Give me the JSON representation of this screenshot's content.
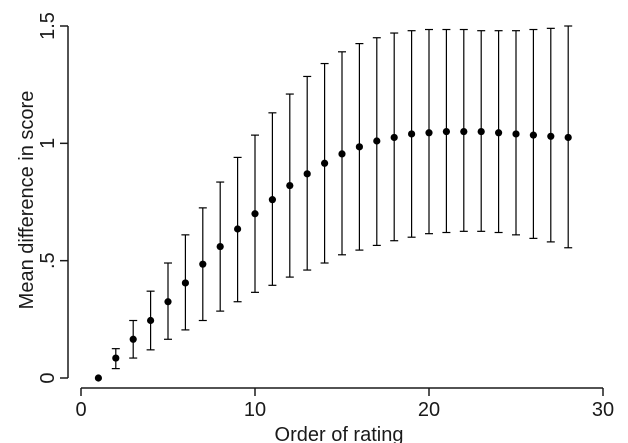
{
  "chart_data": {
    "type": "scatter",
    "title": "",
    "xlabel": "Order of rating",
    "ylabel": "Mean difference in score",
    "xlim": [
      0,
      30
    ],
    "ylim": [
      0,
      1.5
    ],
    "x_ticks": [
      0,
      10,
      20,
      30
    ],
    "x_tick_labels": [
      "0",
      "10",
      "20",
      "30"
    ],
    "y_ticks": [
      0,
      0.5,
      1,
      1.5
    ],
    "y_tick_labels": [
      "0",
      ".5",
      "1",
      "1.5"
    ],
    "grid": false,
    "legend": "none",
    "marker_color": "#000000",
    "error_bar_color": "#000000",
    "series": [
      {
        "x": [
          1,
          2,
          3,
          4,
          5,
          6,
          7,
          8,
          9,
          10,
          11,
          12,
          13,
          14,
          15,
          16,
          17,
          18,
          19,
          20,
          21,
          22,
          23,
          24,
          25,
          26,
          27,
          28
        ],
        "y": [
          0.0,
          0.085,
          0.165,
          0.245,
          0.325,
          0.405,
          0.485,
          0.56,
          0.635,
          0.7,
          0.76,
          0.82,
          0.87,
          0.915,
          0.955,
          0.985,
          1.01,
          1.025,
          1.04,
          1.045,
          1.05,
          1.05,
          1.05,
          1.045,
          1.04,
          1.035,
          1.03,
          1.025
        ],
        "y_lower": [
          0.0,
          0.04,
          0.085,
          0.12,
          0.165,
          0.205,
          0.245,
          0.285,
          0.325,
          0.365,
          0.395,
          0.43,
          0.46,
          0.49,
          0.525,
          0.545,
          0.565,
          0.585,
          0.6,
          0.615,
          0.62,
          0.625,
          0.625,
          0.62,
          0.61,
          0.595,
          0.58,
          0.555
        ],
        "y_upper": [
          0.0,
          0.125,
          0.245,
          0.37,
          0.49,
          0.61,
          0.725,
          0.835,
          0.94,
          1.035,
          1.13,
          1.21,
          1.285,
          1.34,
          1.39,
          1.425,
          1.45,
          1.47,
          1.48,
          1.485,
          1.485,
          1.485,
          1.48,
          1.48,
          1.48,
          1.485,
          1.49,
          1.5
        ]
      }
    ]
  }
}
